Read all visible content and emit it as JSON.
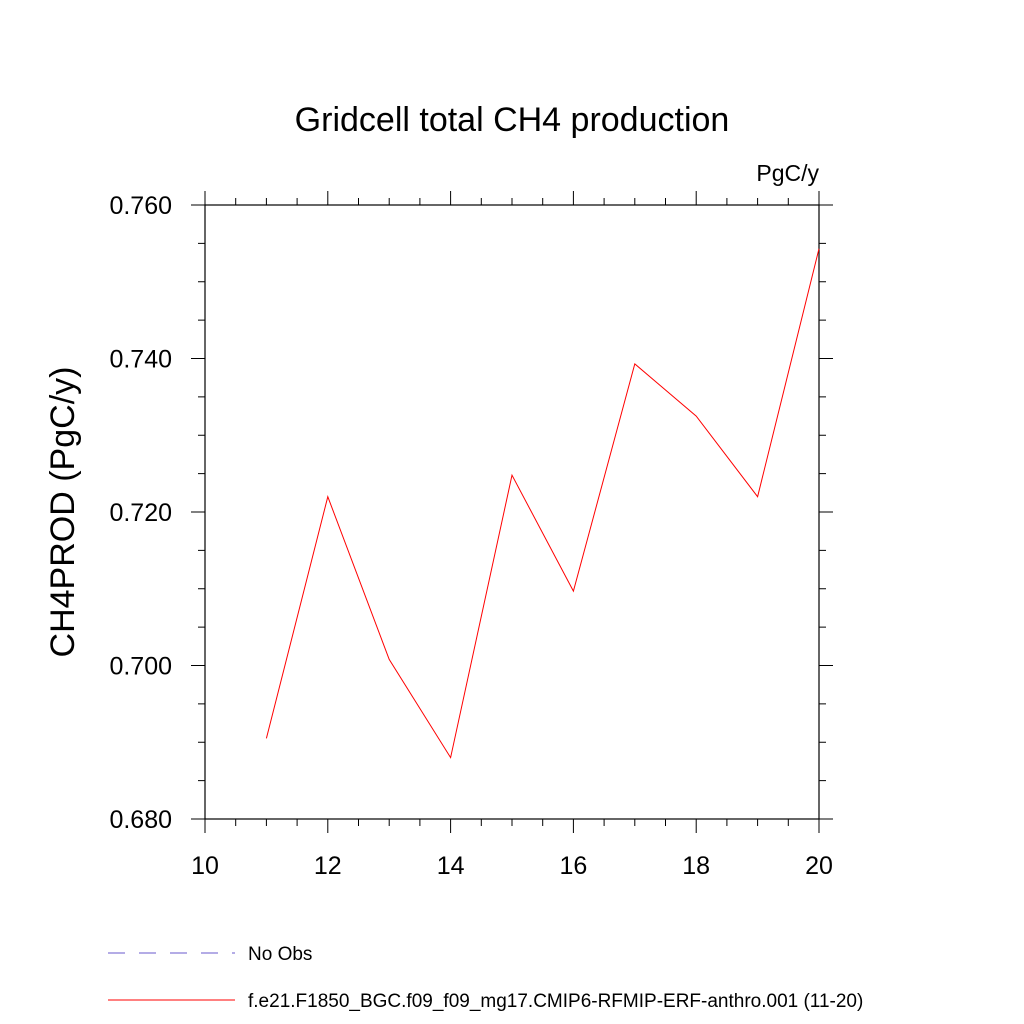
{
  "chart_data": {
    "type": "line",
    "title": "Gridcell total CH4 production",
    "units": "PgC/y",
    "ylabel": "CH4PROD  (PgC/y)",
    "xlabel": "",
    "xlim": [
      10,
      20
    ],
    "ylim": [
      0.68,
      0.76
    ],
    "x_ticks": [
      10,
      12,
      14,
      16,
      18,
      20
    ],
    "x_tick_labels": [
      "10",
      "12",
      "14",
      "16",
      "18",
      "20"
    ],
    "y_ticks": [
      0.68,
      0.7,
      0.72,
      0.74,
      0.76
    ],
    "y_tick_labels": [
      "0.680",
      "0.700",
      "0.720",
      "0.740",
      "0.760"
    ],
    "series": [
      {
        "name": "f.e21.F1850_BGC.f09_f09_mg17.CMIP6-RFMIP-ERF-anthro.001 (11-20)",
        "color": "#ff0000",
        "x": [
          11,
          12,
          13,
          14,
          15,
          16,
          17,
          18,
          19,
          20
        ],
        "values": [
          0.6905,
          0.722,
          0.7008,
          0.688,
          0.7248,
          0.7097,
          0.7393,
          0.7325,
          0.722,
          0.7543
        ]
      }
    ],
    "legend": {
      "position": "bottom-left",
      "entries": [
        {
          "label": "No Obs",
          "color": "#6a5acd",
          "style": "dashed"
        },
        {
          "label": "f.e21.F1850_BGC.f09_f09_mg17.CMIP6-RFMIP-ERF-anthro.001 (11-20)",
          "color": "#ff0000",
          "style": "solid"
        }
      ]
    },
    "grid": false
  }
}
